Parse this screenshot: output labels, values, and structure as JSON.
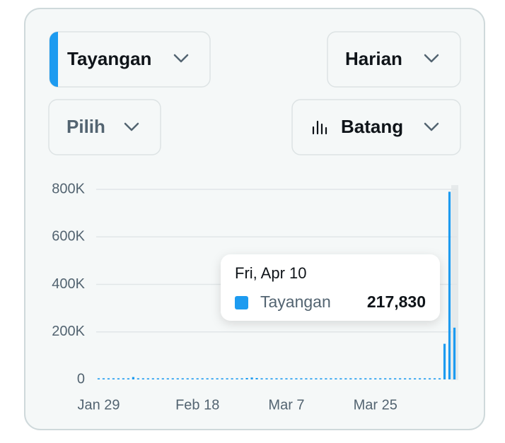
{
  "controls": {
    "metric": "Tayangan",
    "period": "Harian",
    "filter": "Pilih",
    "chart_style": "Batang"
  },
  "chart_data": {
    "type": "bar",
    "categories": [
      "Jan 29",
      null,
      null,
      null,
      null,
      null,
      null,
      null,
      null,
      null,
      null,
      null,
      null,
      null,
      null,
      null,
      null,
      null,
      null,
      null,
      "Feb 18",
      null,
      null,
      null,
      null,
      null,
      null,
      null,
      null,
      null,
      null,
      null,
      null,
      null,
      null,
      null,
      null,
      null,
      "Mar 7",
      null,
      null,
      null,
      null,
      null,
      null,
      null,
      null,
      null,
      null,
      null,
      null,
      null,
      null,
      null,
      null,
      null,
      "Mar 25",
      null,
      null,
      null,
      null,
      null,
      null,
      null,
      null,
      null,
      null,
      null,
      null,
      null,
      null,
      null,
      null
    ],
    "series": [
      {
        "name": "Tayangan",
        "color": "#1d9bf0",
        "values": [
          0,
          0,
          0,
          0,
          0,
          0,
          0,
          10000,
          0,
          0,
          0,
          0,
          0,
          0,
          0,
          0,
          0,
          0,
          0,
          0,
          0,
          0,
          0,
          0,
          0,
          0,
          0,
          0,
          0,
          0,
          6000,
          8000,
          6000,
          0,
          0,
          0,
          0,
          0,
          0,
          0,
          0,
          0,
          0,
          0,
          0,
          0,
          0,
          0,
          0,
          0,
          0,
          0,
          0,
          0,
          0,
          0,
          0,
          0,
          0,
          0,
          0,
          0,
          0,
          0,
          0,
          0,
          0,
          0,
          0,
          0,
          150000,
          790000,
          217830
        ],
        "value_labels": [
          null,
          null,
          null,
          null,
          null,
          null,
          null,
          null,
          null,
          null,
          null,
          null,
          null,
          null,
          null,
          null,
          null,
          null,
          null,
          null,
          null,
          null,
          null,
          null,
          null,
          null,
          null,
          null,
          null,
          null,
          null,
          null,
          null,
          null,
          null,
          null,
          null,
          null,
          null,
          null,
          null,
          null,
          null,
          null,
          null,
          null,
          null,
          null,
          null,
          null,
          null,
          null,
          null,
          null,
          null,
          null,
          null,
          null,
          null,
          null,
          null,
          null,
          null,
          null,
          null,
          null,
          null,
          null,
          null,
          null,
          null,
          null,
          "217,830"
        ]
      }
    ],
    "tooltip_title": "Fri, Apr 10",
    "ylim": [
      0,
      800000
    ],
    "yticks": [
      0,
      {
        "value": 200000,
        "label": "200K"
      },
      {
        "value": 400000,
        "label": "400K"
      },
      {
        "value": 600000,
        "label": "600K"
      },
      {
        "value": 800000,
        "label": "800K"
      }
    ],
    "grid": true
  }
}
